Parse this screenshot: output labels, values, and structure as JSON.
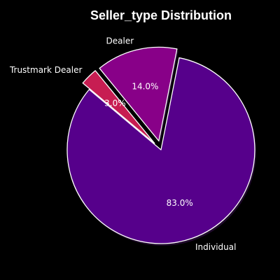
{
  "chart_data": {
    "type": "pie",
    "title": "Seller_type Distribution",
    "categories": [
      "Individual",
      "Dealer",
      "Trustmark Dealer"
    ],
    "values": [
      83.0,
      14.0,
      3.0
    ],
    "value_labels": [
      "83.0%",
      "14.0%",
      "3.0%"
    ],
    "colors": [
      "#56008b",
      "#880088",
      "#c71d52"
    ],
    "exploded": [
      false,
      true,
      true
    ],
    "edge_color": "#ffffff",
    "start_angle_deg": 140,
    "direction": "counterclockwise",
    "background": "#000000"
  }
}
